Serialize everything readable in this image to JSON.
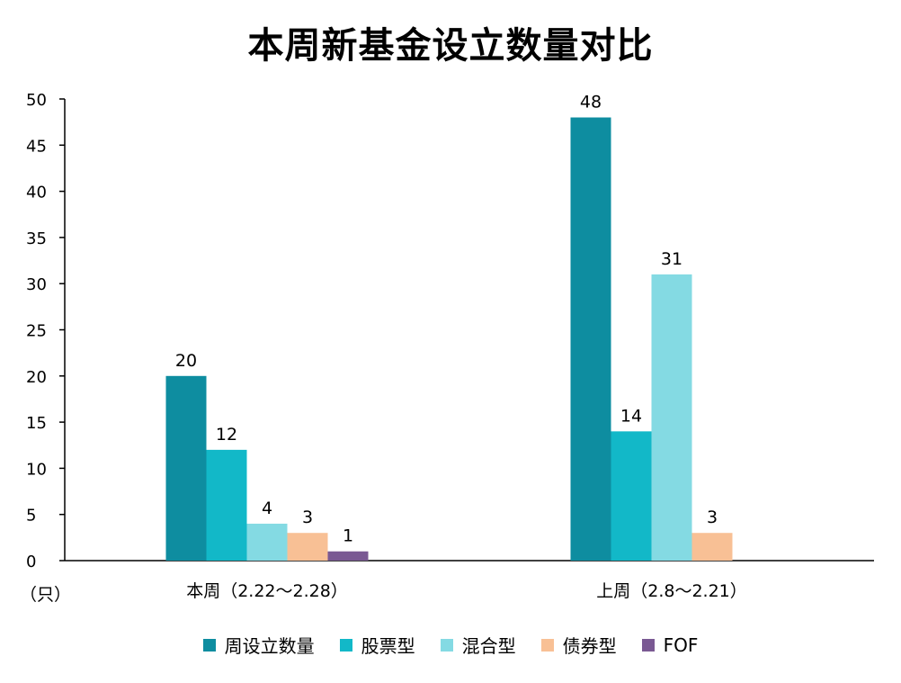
{
  "chart_data": {
    "type": "bar",
    "title": "本周新基金设立数量对比",
    "unit_label": "（只）",
    "ylim": [
      0,
      50
    ],
    "yticks": [
      0,
      5,
      10,
      15,
      20,
      25,
      30,
      35,
      40,
      45,
      50
    ],
    "categories": [
      "本周（2.22～2.28）",
      "上周（2.8～2.21）"
    ],
    "series": [
      {
        "name": "周设立数量",
        "color": "#0E8DA0",
        "values": [
          20,
          48
        ]
      },
      {
        "name": "股票型",
        "color": "#12B8C8",
        "values": [
          12,
          14
        ]
      },
      {
        "name": "混合型",
        "color": "#84DAE3",
        "values": [
          4,
          31
        ]
      },
      {
        "name": "债券型",
        "color": "#F8C095",
        "values": [
          3,
          3
        ]
      },
      {
        "name": "FOF",
        "color": "#7A5993",
        "values": [
          1,
          null
        ]
      }
    ],
    "grid": false,
    "legend_position": "bottom"
  }
}
